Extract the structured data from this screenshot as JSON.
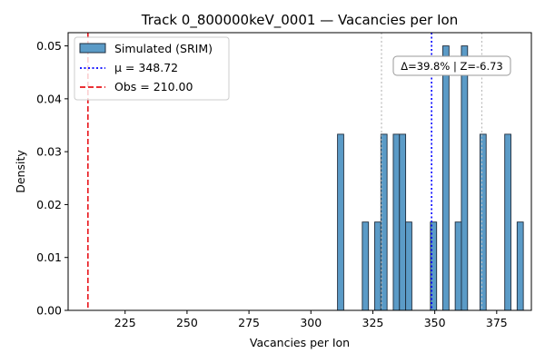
{
  "chart_data": {
    "type": "bar",
    "title": "Track 0_800000keV_0001 — Vacancies per Ion",
    "xlabel": "Vacancies per Ion",
    "ylabel": "Density",
    "xlim": [
      202,
      389
    ],
    "ylim": [
      0,
      0.0525
    ],
    "x_ticks": [
      "225",
      "250",
      "275",
      "300",
      "325",
      "350",
      "375"
    ],
    "x_tick_values": [
      225,
      250,
      275,
      300,
      325,
      350,
      375
    ],
    "y_ticks": [
      "0.00",
      "0.01",
      "0.02",
      "0.03",
      "0.04",
      "0.05"
    ],
    "y_tick_values": [
      0,
      0.01,
      0.02,
      0.03,
      0.04,
      0.05
    ],
    "bin_width": 2.5,
    "bins": [
      {
        "x": 312.0,
        "density": 0.0333
      },
      {
        "x": 322.0,
        "density": 0.0167
      },
      {
        "x": 327.0,
        "density": 0.0167
      },
      {
        "x": 329.5,
        "density": 0.0333
      },
      {
        "x": 334.5,
        "density": 0.0333
      },
      {
        "x": 337.0,
        "density": 0.0333
      },
      {
        "x": 339.5,
        "density": 0.0167
      },
      {
        "x": 349.5,
        "density": 0.0167
      },
      {
        "x": 354.5,
        "density": 0.05
      },
      {
        "x": 359.5,
        "density": 0.0167
      },
      {
        "x": 362.0,
        "density": 0.05
      },
      {
        "x": 369.5,
        "density": 0.0333
      },
      {
        "x": 379.5,
        "density": 0.0333
      },
      {
        "x": 384.5,
        "density": 0.0167
      }
    ],
    "bar_color": "#5b9bc7",
    "bar_edge_color": "#1f2d3d",
    "mean_line": {
      "x": 348.72,
      "color": "#0000ff",
      "style": "dotted"
    },
    "obs_line": {
      "x": 210.0,
      "color": "#e8141a",
      "style": "dashed"
    },
    "sigma_lines": {
      "x": [
        328.5,
        369.0
      ],
      "color": "#bbbbbb",
      "style": "dotted"
    },
    "legend": {
      "placement": "top-left",
      "entries": [
        {
          "label": "Simulated (SRIM)",
          "kind": "patch"
        },
        {
          "label": "μ = 348.72",
          "kind": "dotted-line",
          "color": "#0000ff"
        },
        {
          "label": "Obs = 210.00",
          "kind": "dashed-line",
          "color": "#e8141a"
        }
      ]
    },
    "annotation": {
      "text": "Δ=39.8% | Z=-6.73",
      "placement": "top-right"
    }
  }
}
